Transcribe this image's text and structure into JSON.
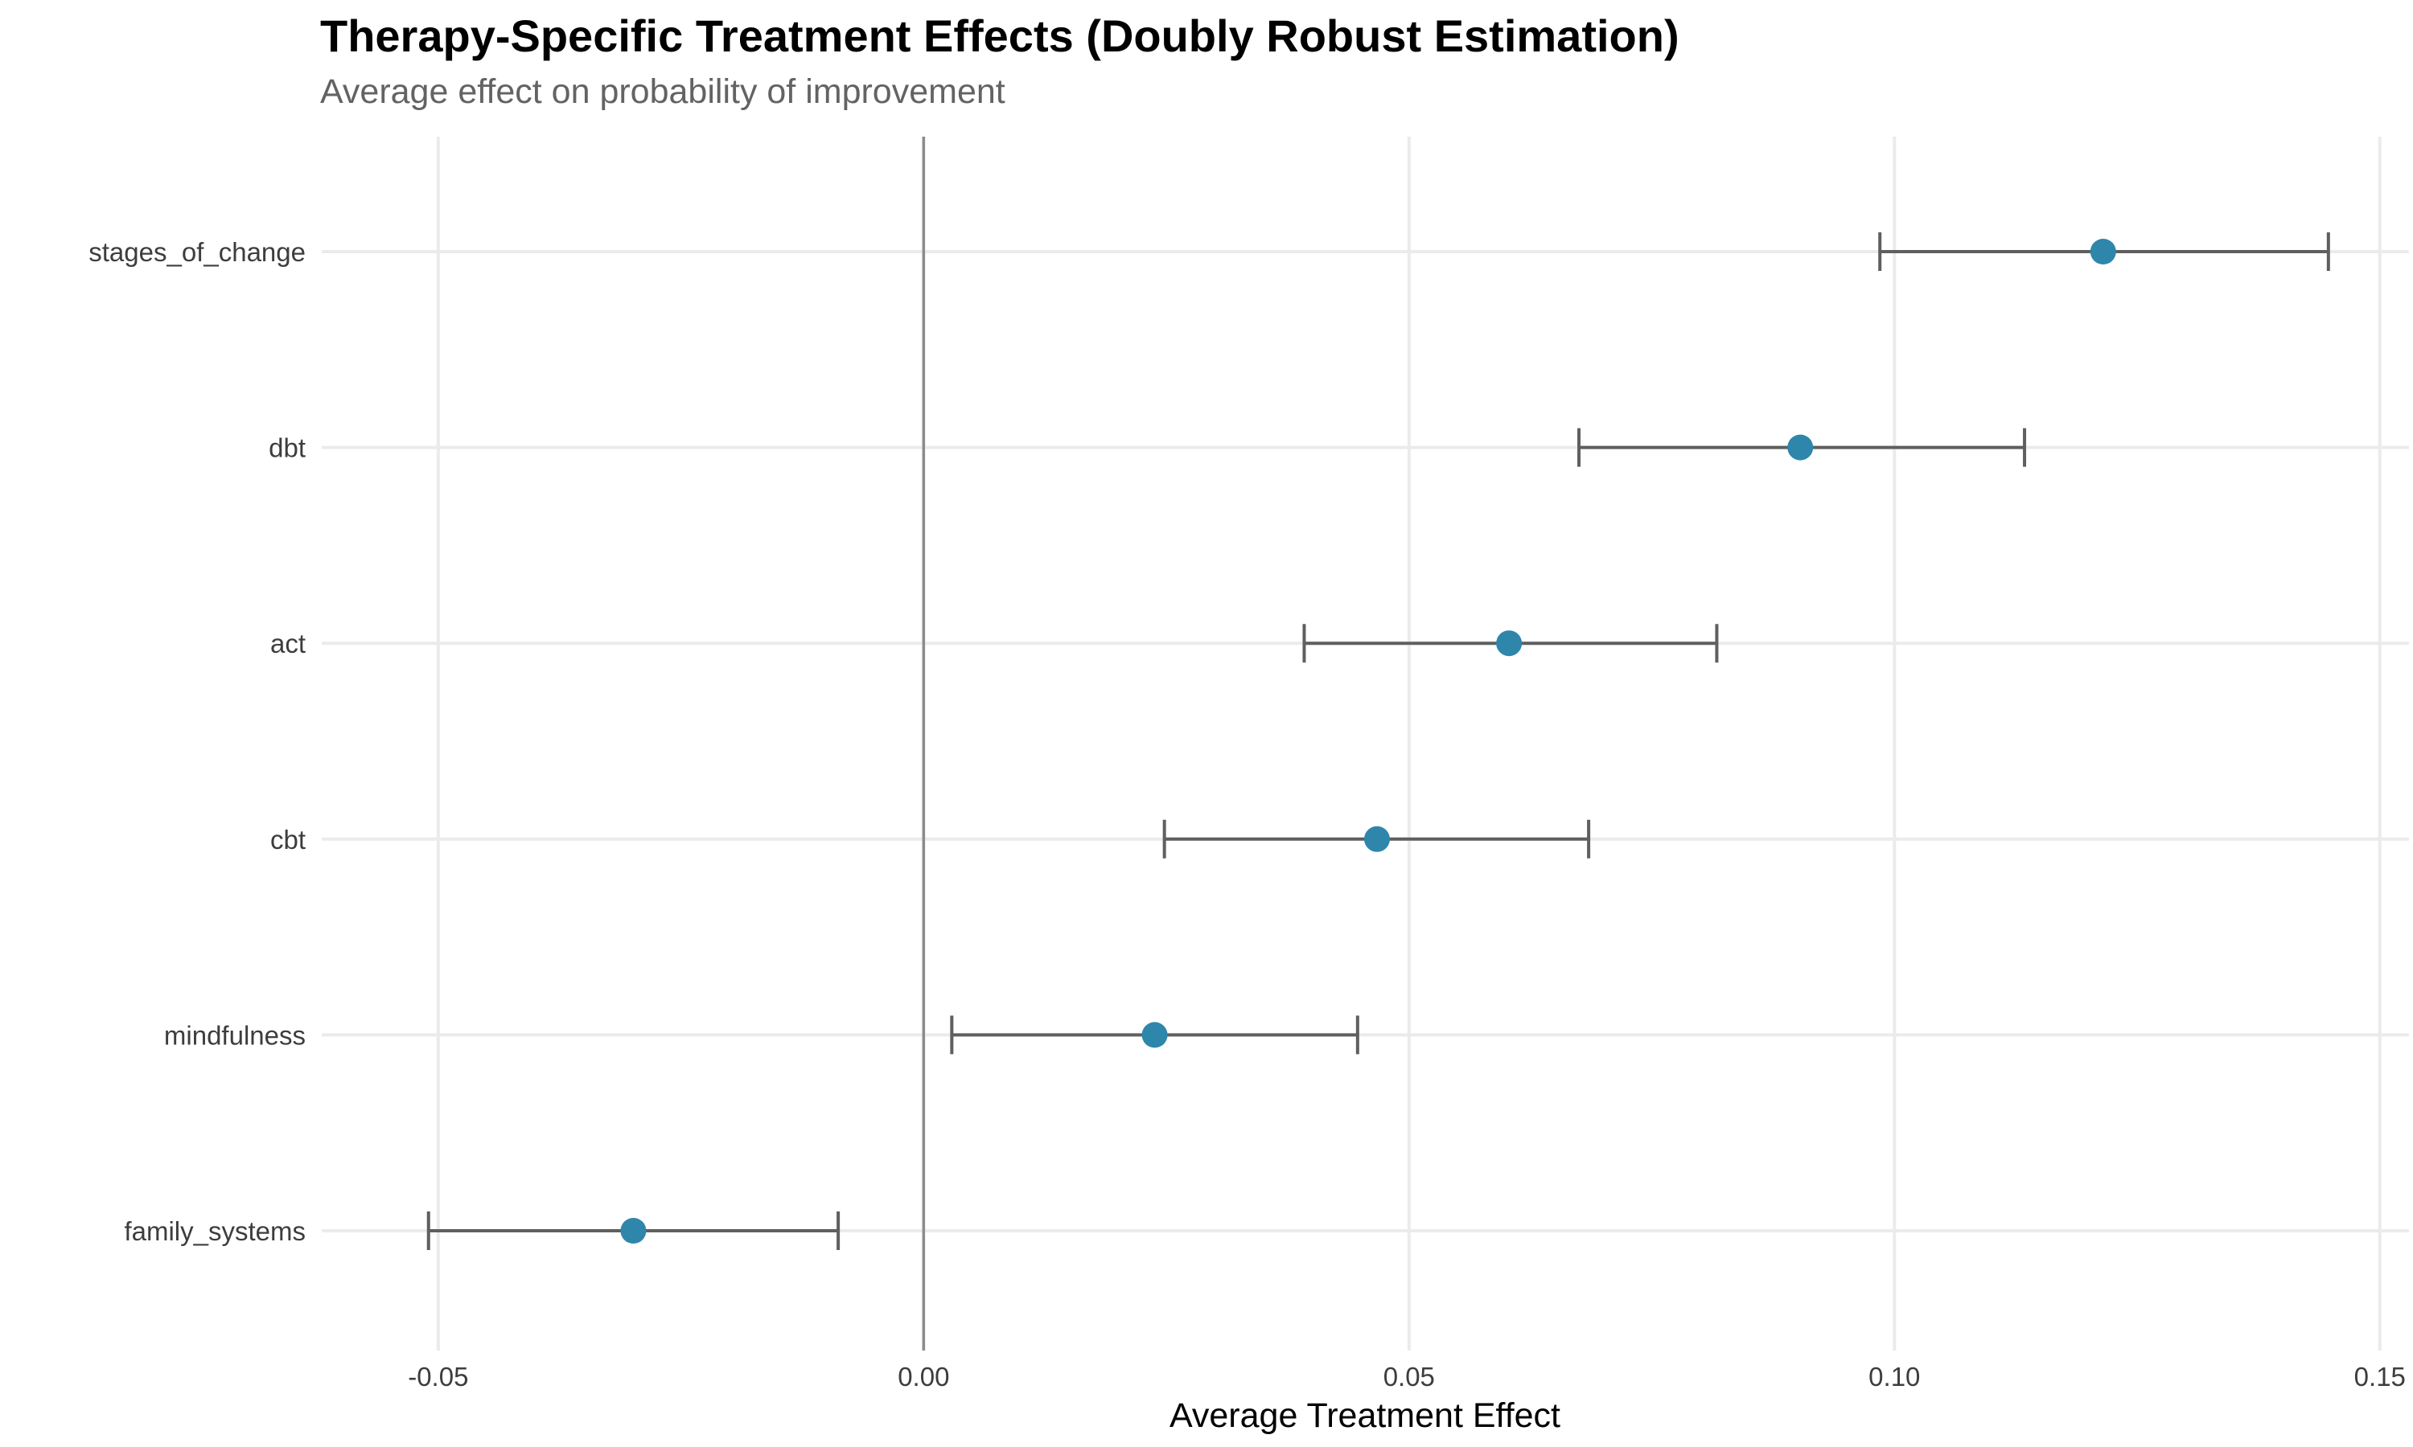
{
  "chart_data": {
    "type": "scatter",
    "title": "Therapy-Specific Treatment Effects (Doubly Robust Estimation)",
    "subtitle": "Average effect on probability of improvement",
    "xlabel": "Average Treatment Effect",
    "ylabel": "",
    "xlim": [
      -0.062,
      0.153
    ],
    "xticks": [
      -0.05,
      0.0,
      0.05,
      0.1,
      0.15
    ],
    "xtick_labels": [
      "-0.05",
      "0.00",
      "0.05",
      "0.10",
      "0.15"
    ],
    "categories": [
      "stages_of_change",
      "dbt",
      "act",
      "cbt",
      "mindfulness",
      "family_systems"
    ],
    "series": [
      {
        "estimate": [
          0.1215,
          0.0903,
          0.0603,
          0.0467,
          0.0238,
          -0.0299
        ],
        "ci_low": [
          0.0985,
          0.0675,
          0.0392,
          0.0248,
          0.0029,
          -0.051
        ],
        "ci_high": [
          0.1447,
          0.1134,
          0.0817,
          0.0685,
          0.0447,
          -0.0088
        ]
      }
    ],
    "reference_line_x": 0.0,
    "grid": true,
    "legend": "none",
    "colors": {
      "point": "#2e86ab",
      "errorbar": "#5f5f5f",
      "grid": "#ebebeb",
      "reference": "#8c8c8c"
    }
  }
}
